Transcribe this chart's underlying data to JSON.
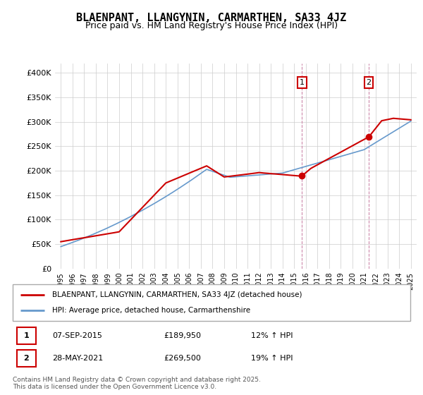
{
  "title": "BLAENPANT, LLANGYNIN, CARMARTHEN, SA33 4JZ",
  "subtitle": "Price paid vs. HM Land Registry's House Price Index (HPI)",
  "title_fontsize": 11,
  "subtitle_fontsize": 9,
  "ylabel_ticks": [
    "£0",
    "£50K",
    "£100K",
    "£150K",
    "£200K",
    "£250K",
    "£300K",
    "£350K",
    "£400K"
  ],
  "ytick_vals": [
    0,
    50000,
    100000,
    150000,
    200000,
    250000,
    300000,
    350000,
    400000
  ],
  "ylim": [
    0,
    420000
  ],
  "xlim_start": 1994.5,
  "xlim_end": 2025.5,
  "xtick_years": [
    1995,
    1996,
    1997,
    1998,
    1999,
    2000,
    2001,
    2002,
    2003,
    2004,
    2005,
    2006,
    2007,
    2008,
    2009,
    2010,
    2011,
    2012,
    2013,
    2014,
    2015,
    2016,
    2017,
    2018,
    2019,
    2020,
    2021,
    2022,
    2023,
    2024,
    2025
  ],
  "vline1_x": 2015.68,
  "vline2_x": 2021.4,
  "marker1_x": 2015.68,
  "marker1_y": 189950,
  "marker2_x": 2021.4,
  "marker2_y": 269500,
  "annotation1": "1",
  "annotation2": "2",
  "legend_line1": "BLAENPANT, LLANGYNIN, CARMARTHEN, SA33 4JZ (detached house)",
  "legend_line2": "HPI: Average price, detached house, Carmarthenshire",
  "table_row1": [
    "1",
    "07-SEP-2015",
    "£189,950",
    "12% ↑ HPI"
  ],
  "table_row2": [
    "2",
    "28-MAY-2021",
    "£269,500",
    "19% ↑ HPI"
  ],
  "footer": "Contains HM Land Registry data © Crown copyright and database right 2025.\nThis data is licensed under the Open Government Licence v3.0.",
  "line_color_red": "#cc0000",
  "line_color_blue": "#6699cc",
  "vline_color": "#cc0000",
  "background_color": "#ffffff",
  "grid_color": "#cccccc"
}
